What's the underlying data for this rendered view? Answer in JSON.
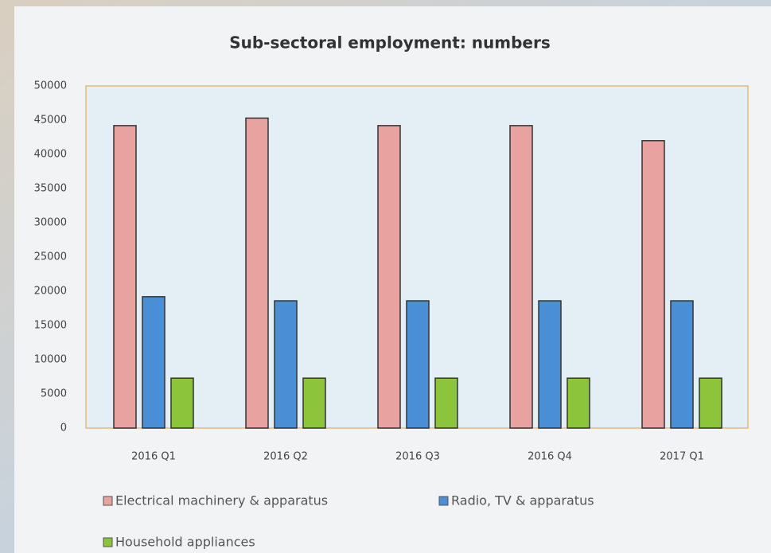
{
  "chart_data": {
    "type": "bar",
    "title": "Sub-sectoral employment: numbers",
    "categories": [
      "2016 Q1",
      "2016 Q2",
      "2016 Q3",
      "2016 Q4",
      "2017 Q1"
    ],
    "series": [
      {
        "name": "Electrical machinery & apparatus",
        "color": "#e8a3a0",
        "values": [
          44200,
          45300,
          44200,
          44200,
          42000
        ]
      },
      {
        "name": "Radio, TV & apparatus",
        "color": "#4a8fd6",
        "values": [
          19200,
          18600,
          18600,
          18600,
          18600
        ]
      },
      {
        "name": "Household appliances",
        "color": "#8cc43c",
        "values": [
          7300,
          7300,
          7300,
          7300,
          7300
        ]
      }
    ],
    "ylim": [
      0,
      50000
    ],
    "yticks": [
      0,
      5000,
      10000,
      15000,
      20000,
      25000,
      30000,
      35000,
      40000,
      45000,
      50000
    ],
    "grid": false,
    "legend": "bottom"
  }
}
